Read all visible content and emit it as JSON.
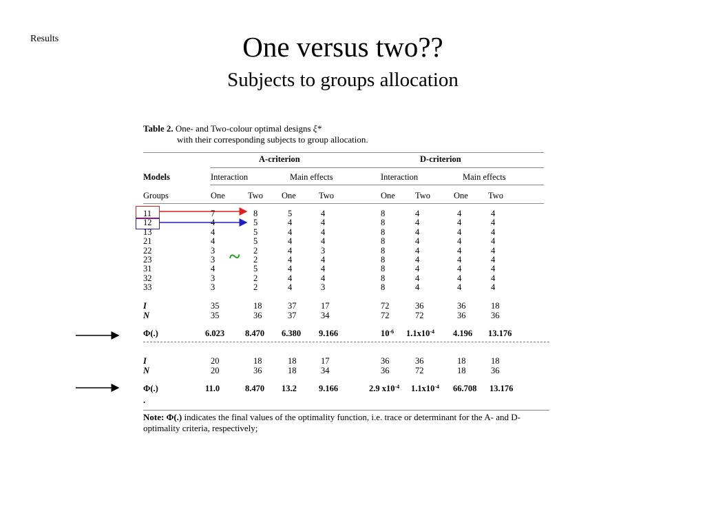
{
  "slide_label": "Results",
  "title": "One versus two??",
  "subtitle": "Subjects to groups allocation",
  "table": {
    "caption_label": "Table 2.",
    "caption_text": "One- and Two-colour optimal designs",
    "caption_symbol": "ξ*",
    "caption_text2": "with their corresponding subjects to group allocation.",
    "a_criterion": "A-criterion",
    "d_criterion": "D-criterion",
    "models_label": "Models",
    "interaction": "Interaction",
    "main_effects": "Main effects",
    "groups_label": "Groups",
    "one": "One",
    "two": "Two",
    "rows": [
      [
        "11",
        "7",
        "8",
        "5",
        "4",
        "8",
        "4",
        "4",
        "4"
      ],
      [
        "12",
        "4",
        "5",
        "4",
        "4",
        "8",
        "4",
        "4",
        "4"
      ],
      [
        "13",
        "4",
        "5",
        "4",
        "4",
        "8",
        "4",
        "4",
        "4"
      ],
      [
        "21",
        "4",
        "5",
        "4",
        "4",
        "8",
        "4",
        "4",
        "4"
      ],
      [
        "22",
        "3",
        "2",
        "4",
        "3",
        "8",
        "4",
        "4",
        "4"
      ],
      [
        "23",
        "3",
        "2",
        "4",
        "4",
        "8",
        "4",
        "4",
        "4"
      ],
      [
        "31",
        "4",
        "5",
        "4",
        "4",
        "8",
        "4",
        "4",
        "4"
      ],
      [
        "32",
        "3",
        "2",
        "4",
        "4",
        "8",
        "4",
        "4",
        "4"
      ],
      [
        "33",
        "3",
        "2",
        "4",
        "3",
        "8",
        "4",
        "4",
        "4"
      ]
    ],
    "I_label": "I",
    "N_label": "N",
    "I_row": [
      "35",
      "18",
      "37",
      "17",
      "72",
      "36",
      "36",
      "18"
    ],
    "N_row": [
      "35",
      "36",
      "37",
      "34",
      "72",
      "72",
      "36",
      "36"
    ],
    "phi_label": "Φ(.)",
    "phi_row": [
      "6.023",
      "8.470",
      "6.380",
      "9.166",
      "10",
      "1.1x10",
      "4.196",
      "13.176"
    ],
    "phi_sup": [
      "",
      "",
      "",
      "",
      "-6",
      "-4",
      "",
      ""
    ],
    "I_row2": [
      "20",
      "18",
      "18",
      "17",
      "36",
      "36",
      "18",
      "18"
    ],
    "N_row2": [
      "20",
      "36",
      "18",
      "34",
      "36",
      "72",
      "18",
      "36"
    ],
    "phi_row2": [
      "11.0",
      "8.470",
      "13.2",
      "9.166",
      "2.9 x10",
      "1.1x10",
      "66.708",
      "13.176"
    ],
    "phi_sup2": [
      "",
      "",
      "",
      "",
      "-4",
      "-4",
      "",
      ""
    ],
    "dot": ".",
    "note_label": "Note:",
    "note_symbol": "Φ(.)",
    "note_text": "indicates the final values of the optimality function, i.e. trace or determinant for the A- and D- optimality criteria, respectively;"
  },
  "annotation_tilde": "~",
  "colors": {
    "red_box": "#e02020",
    "blue_box": "#2020c0",
    "tilde": "#2aa52a"
  }
}
